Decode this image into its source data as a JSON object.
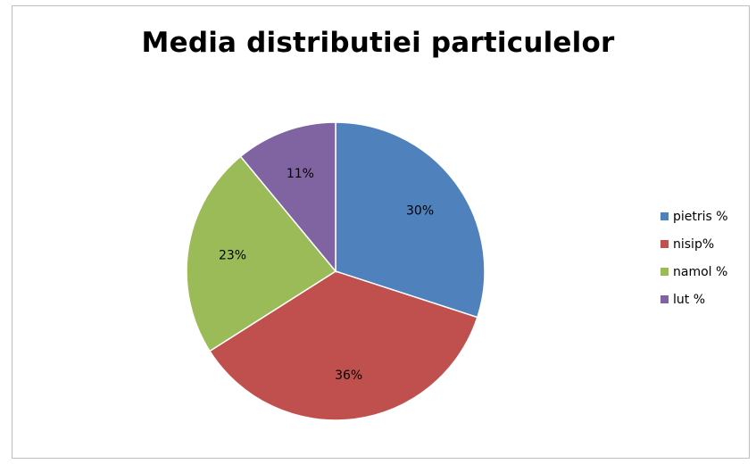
{
  "chart_data": {
    "type": "pie",
    "title": "Media distributiei particulelor",
    "slices": [
      {
        "name": "pietris %",
        "value": 30,
        "label": "30%",
        "color": "#4f81bd"
      },
      {
        "name": "nisip%",
        "value": 36,
        "label": "36%",
        "color": "#c0504d"
      },
      {
        "name": "namol %",
        "value": 23,
        "label": "23%",
        "color": "#9bbb59"
      },
      {
        "name": "lut %",
        "value": 11,
        "label": "11%",
        "color": "#8064a2"
      }
    ],
    "start": "top, clockwise",
    "legend_position": "right"
  }
}
